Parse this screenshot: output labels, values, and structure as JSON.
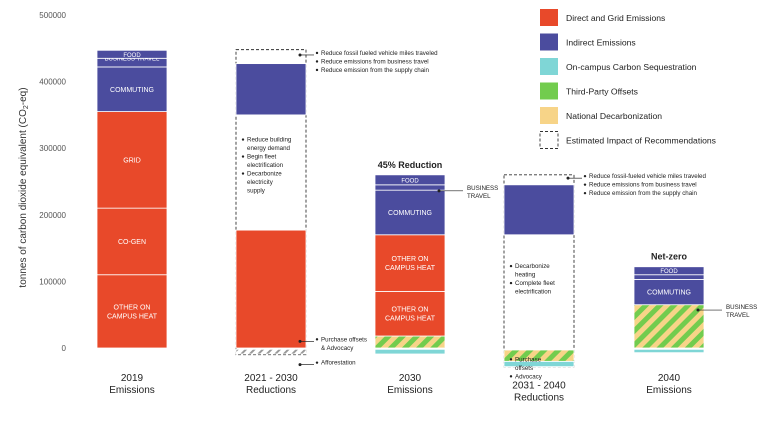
{
  "chart_data": {
    "type": "bar",
    "ylabel": "tonnes of carbon dioxide equivalent (CO",
    "ylabel_sub": "2",
    "ylabel_end": "-eq)",
    "ylim": [
      0,
      500000
    ],
    "yticks": [
      {
        "value": 0,
        "label": "0"
      },
      {
        "value": 100000,
        "label": "100000"
      },
      {
        "value": 200000,
        "label": "200000"
      },
      {
        "value": 300000,
        "label": "300000"
      },
      {
        "value": 400000,
        "label": "400000"
      },
      {
        "value": 500000,
        "label": "500000"
      }
    ],
    "colors": {
      "direct": "#e8492a",
      "indirect": "#4b4c9e",
      "sequestration": "#7fd6d6",
      "offsets": "#72cc4e",
      "national": "#f7d488",
      "impact": "#333333"
    },
    "legend": [
      {
        "key": "direct",
        "label": "Direct and Grid Emissions"
      },
      {
        "key": "indirect",
        "label": "Indirect Emissions"
      },
      {
        "key": "sequestration",
        "label": "On-campus Carbon Sequestration"
      },
      {
        "key": "offsets",
        "label": "Third-Party Offsets"
      },
      {
        "key": "national",
        "label": "National Decarbonization"
      },
      {
        "key": "impact",
        "label": "Estimated Impact of Recommendations"
      }
    ],
    "categories": [
      {
        "line1": "2019",
        "line2": "Emissions"
      },
      {
        "line1": "2021 - 2030",
        "line2": "Reductions"
      },
      {
        "line1": "2030",
        "line2": "Emissions"
      },
      {
        "line1": "2031 - 2040",
        "line2": "Reductions"
      },
      {
        "line1": "2040",
        "line2": "Emissions"
      }
    ],
    "bars": [
      {
        "category": 0,
        "segments": [
          {
            "from": 0,
            "to": 110000,
            "type": "direct",
            "label": "OTHER ON CAMPUS HEAT"
          },
          {
            "from": 110000,
            "to": 210000,
            "type": "direct",
            "label": "CO-GEN"
          },
          {
            "from": 210000,
            "to": 355000,
            "type": "direct",
            "label": "GRID"
          },
          {
            "from": 355000,
            "to": 422000,
            "type": "indirect",
            "label": "COMMUTING"
          },
          {
            "from": 422000,
            "to": 435000,
            "type": "indirect",
            "label": "BUSINESS TRAVEL"
          },
          {
            "from": 435000,
            "to": 447000,
            "type": "indirect",
            "label": "FOOD"
          }
        ]
      },
      {
        "category": 1,
        "segments": [
          {
            "from": 0,
            "to": 177000,
            "type": "direct",
            "label": ""
          },
          {
            "from": 350000,
            "to": 427000,
            "type": "indirect",
            "label": ""
          },
          {
            "from": -9000,
            "to": -2000,
            "type": "hatch-grey",
            "label": ""
          }
        ],
        "dashed_box": [
          -10000,
          448000
        ]
      },
      {
        "category": 2,
        "segments": [
          {
            "from": -9000,
            "to": -2000,
            "type": "sequestration",
            "label": ""
          },
          {
            "from": 0,
            "to": 18000,
            "type": "hatch",
            "label": ""
          },
          {
            "from": 18000,
            "to": 85000,
            "type": "direct",
            "label": "OTHER ON CAMPUS HEAT"
          },
          {
            "from": 85000,
            "to": 170000,
            "type": "direct",
            "label": "OTHER ON CAMPUS HEAT"
          },
          {
            "from": 170000,
            "to": 237000,
            "type": "indirect",
            "label": "COMMUTING"
          },
          {
            "from": 237000,
            "to": 245000,
            "type": "indirect",
            "label": ""
          },
          {
            "from": 245000,
            "to": 260000,
            "type": "indirect",
            "label": "FOOD"
          }
        ]
      },
      {
        "category": 3,
        "segments": [
          {
            "from": 170000,
            "to": 245000,
            "type": "indirect",
            "label": ""
          },
          {
            "from": -28000,
            "to": -20000,
            "type": "sequestration",
            "label": ""
          },
          {
            "from": -20000,
            "to": -3000,
            "type": "hatch",
            "label": ""
          }
        ],
        "dashed_box": [
          -28000,
          260000
        ]
      },
      {
        "category": 4,
        "segments": [
          {
            "from": -7000,
            "to": -2000,
            "type": "sequestration",
            "label": ""
          },
          {
            "from": 0,
            "to": 65000,
            "type": "hatch",
            "label": ""
          },
          {
            "from": 65000,
            "to": 103000,
            "type": "indirect",
            "label": "COMMUTING"
          },
          {
            "from": 103000,
            "to": 110000,
            "type": "indirect",
            "label": ""
          },
          {
            "from": 110000,
            "to": 122000,
            "type": "indirect",
            "label": "FOOD"
          }
        ]
      }
    ],
    "bar_titles": [
      {
        "category": 2,
        "text": "45% Reduction"
      },
      {
        "category": 4,
        "text": "Net-zero"
      }
    ],
    "annotations": [
      {
        "category": 1,
        "at": 440000,
        "bullets": [
          "Reduce fossil fueled vehicle miles traveled",
          "Reduce emissions from business travel",
          "Reduce emission from the supply chain"
        ]
      },
      {
        "category": 1,
        "at": 310000,
        "bullets": [
          "Reduce building energy demand",
          "Begin fleet electrification",
          "Decarbonize electricity supply"
        ]
      },
      {
        "category": 1,
        "at": 10000,
        "bullets": [
          "Purchase offsets & Advocacy"
        ]
      },
      {
        "category": 1,
        "at": -25000,
        "bullets": [
          "Afforestation"
        ]
      },
      {
        "category": 2,
        "at": 236000,
        "bullets": [
          "BUSINESS TRAVEL"
        ]
      },
      {
        "category": 3,
        "at": 255000,
        "bullets": [
          "Reduce fossil-fueled vehicle miles traveled",
          "Reduce emissions from business travel",
          "Reduce emission from the supply chain"
        ]
      },
      {
        "category": 3,
        "at": 120000,
        "bullets": [
          "Decarbonize heating",
          "Complete fleet electrification"
        ]
      },
      {
        "category": 3,
        "at": -20000,
        "bullets": [
          "Purchase offsets",
          "Advocacy"
        ]
      },
      {
        "category": 4,
        "at": 57000,
        "bullets": [
          "BUSINESS TRAVEL"
        ]
      }
    ]
  }
}
